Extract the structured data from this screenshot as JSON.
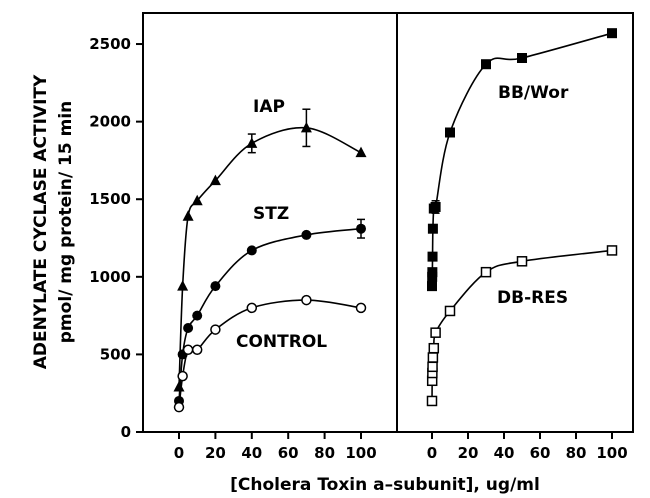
{
  "chart_data": {
    "type": "scatter",
    "ylabel_line1": "ADENYLATE CYCLASE ACTIVITY",
    "ylabel_line2": "pmol/ mg protein/ 15 min",
    "xlabel": "[Cholera Toxin a–subunit], ug/ml",
    "ylim": [
      0,
      2700
    ],
    "yticks": [
      0,
      500,
      1000,
      1500,
      2000,
      2500
    ],
    "xlim": [
      -10,
      110
    ],
    "xticks": [
      0,
      20,
      40,
      60,
      80,
      100
    ],
    "panels": [
      {
        "series": [
          {
            "name": "IAP",
            "marker": "filled-triangle",
            "x": [
              0,
              2,
              5,
              10,
              20,
              40,
              70,
              100
            ],
            "y": [
              290,
              940,
              1390,
              1490,
              1620,
              1860,
              1960,
              1800
            ],
            "err": [
              0,
              0,
              0,
              0,
              0,
              60,
              120,
              0
            ]
          },
          {
            "name": "STZ",
            "marker": "filled-circle",
            "x": [
              0,
              2,
              5,
              10,
              20,
              40,
              70,
              100
            ],
            "y": [
              200,
              500,
              670,
              750,
              940,
              1170,
              1270,
              1310
            ],
            "err": [
              0,
              0,
              0,
              0,
              0,
              0,
              0,
              60
            ]
          },
          {
            "name": "CONTROL",
            "marker": "open-circle",
            "x": [
              0,
              2,
              5,
              10,
              20,
              40,
              70,
              100
            ],
            "y": [
              160,
              360,
              530,
              530,
              660,
              800,
              850,
              800
            ],
            "err": [
              0,
              0,
              0,
              0,
              0,
              0,
              0,
              0
            ]
          }
        ]
      },
      {
        "series": [
          {
            "name": "BB/Wor",
            "marker": "filled-square",
            "x": [
              0,
              0.1,
              0.2,
              0.3,
              0.5,
              1,
              2,
              10,
              30,
              50,
              100
            ],
            "y": [
              940,
              1000,
              1030,
              1130,
              1310,
              1440,
              1450,
              1930,
              2370,
              2410,
              2570
            ],
            "err": [
              0,
              0,
              0,
              0,
              0,
              0,
              40,
              0,
              0,
              0,
              0
            ]
          },
          {
            "name": "DB-RES",
            "marker": "open-square",
            "x": [
              0,
              0.1,
              0.2,
              0.3,
              0.5,
              1,
              2,
              10,
              30,
              50,
              100
            ],
            "y": [
              200,
              330,
              380,
              420,
              480,
              540,
              640,
              780,
              1030,
              1100,
              1170
            ],
            "err": [
              0,
              0,
              0,
              0,
              0,
              0,
              0,
              0,
              0,
              0,
              0
            ]
          }
        ]
      }
    ]
  }
}
